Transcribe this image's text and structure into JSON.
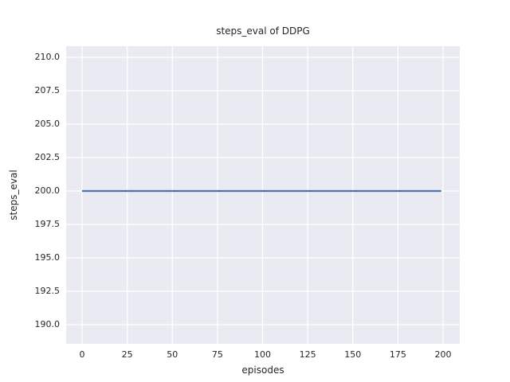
{
  "chart_data": {
    "type": "line",
    "title": "steps_eval of DDPG",
    "xlabel": "episodes",
    "ylabel": "steps_eval",
    "xlim": [
      -8.83,
      209.28
    ],
    "ylim": [
      188.571,
      210.833
    ],
    "xticks": [
      0,
      25,
      50,
      75,
      100,
      125,
      150,
      175,
      200
    ],
    "xtick_labels": [
      "0",
      "25",
      "50",
      "75",
      "100",
      "125",
      "150",
      "175",
      "200"
    ],
    "yticks": [
      190.0,
      192.5,
      195.0,
      197.5,
      200.0,
      202.5,
      205.0,
      207.5,
      210.0
    ],
    "ytick_labels": [
      "190.0",
      "192.5",
      "195.0",
      "197.5",
      "200.0",
      "202.5",
      "205.0",
      "207.5",
      "210.0"
    ],
    "grid": true,
    "legend": false,
    "plot_bg": "#eaeaf2",
    "grid_color": "#ffffff",
    "text_color": "#262626",
    "series": [
      {
        "name": "steps_eval",
        "x": [
          0,
          199
        ],
        "y": [
          200,
          200
        ],
        "constant_value": 200,
        "color": "#4c72b0",
        "linewidth": 2.25
      }
    ]
  }
}
